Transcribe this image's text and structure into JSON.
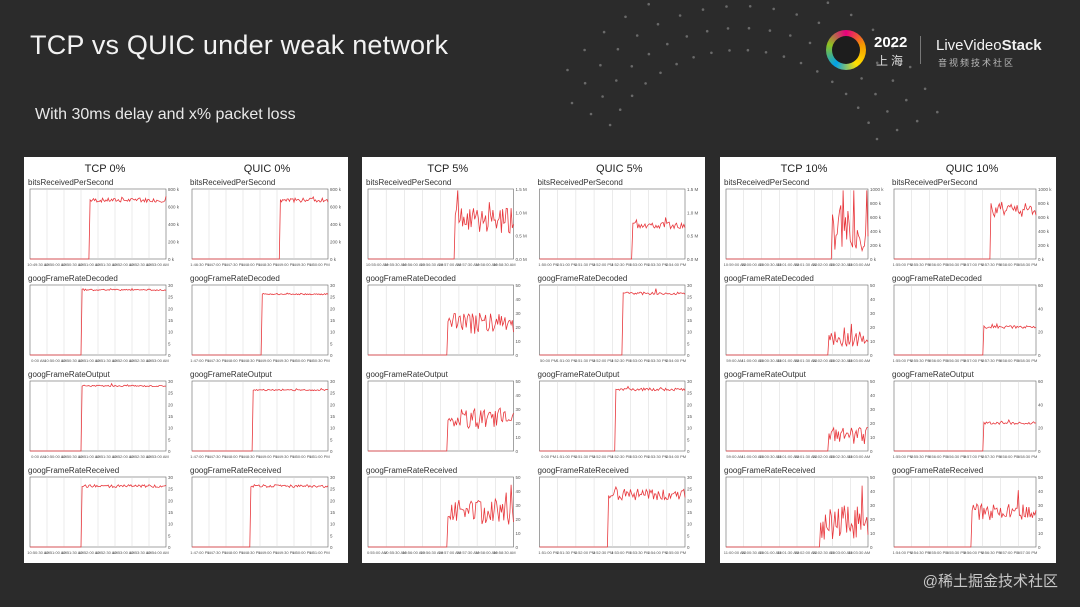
{
  "slide": {
    "title": "TCP vs QUIC under weak network",
    "subtitle": "With 30ms delay and x% packet loss"
  },
  "logo": {
    "year": "2022",
    "city": "上海",
    "brand_a": "LiveVideo",
    "brand_b": "Stack",
    "brand_sub": "音视频技术社区"
  },
  "watermark": "@稀土掘金技术社区",
  "colors": {
    "line": "#e8383d",
    "grid": "#d7d7d7",
    "axis": "#666666"
  },
  "chart_data": [
    {
      "type": "line",
      "title": "TCP 0%",
      "panels": [
        {
          "label": "bitsReceivedPerSecond",
          "x": [
            "10:49:30 AM",
            "10:50:00 AM",
            "10:50:30 AM",
            "10:51:00 AM",
            "10:51:30 AM",
            "10:52:00 AM",
            "10:52:30 AM",
            "10:53:00 AM"
          ],
          "yticks": [
            "800 k",
            "600 k",
            "400 k",
            "200 k",
            "0 k"
          ],
          "ylim": [
            0,
            800
          ],
          "step": 0.44,
          "level": 0.84,
          "noise": 0.03
        },
        {
          "label": "googFrameRateDecoded",
          "x": [
            "0:00 AM",
            "10:50:00 AM",
            "10:50:30 AM",
            "10:51:00 AM",
            "10:51:30 AM",
            "10:52:00 AM",
            "10:52:30 AM",
            "10:53:00 AM"
          ],
          "yticks": [
            "30",
            "25",
            "20",
            "15",
            "10",
            "5",
            "0"
          ],
          "ylim": [
            0,
            30
          ],
          "step": 0.38,
          "level": 0.93,
          "noise": 0.01
        },
        {
          "label": "googFrameRateOutput",
          "x": [
            "0:00 AM",
            "10:50:00 AM",
            "10:50:30 AM",
            "10:51:00 AM",
            "10:51:30 AM",
            "10:52:00 AM",
            "10:52:30 AM",
            "10:53:00 AM"
          ],
          "yticks": [
            "30",
            "25",
            "20",
            "15",
            "10",
            "5",
            "0"
          ],
          "ylim": [
            0,
            30
          ],
          "step": 0.38,
          "level": 0.93,
          "noise": 0.01
        },
        {
          "label": "googFrameRateReceived",
          "x": [
            "10:50:30 AM",
            "10:51:00 AM",
            "10:51:30 AM",
            "10:52:00 AM",
            "10:52:30 AM",
            "10:53:00 AM",
            "10:53:30 AM",
            "10:54:00 AM"
          ],
          "yticks": [
            "30",
            "25",
            "20",
            "15",
            "10",
            "5",
            "0"
          ],
          "ylim": [
            0,
            30
          ],
          "step": 0.38,
          "level": 0.87,
          "noise": 0.02
        }
      ]
    },
    {
      "type": "line",
      "title": "QUIC 0%",
      "panels": [
        {
          "label": "bitsReceivedPerSecond",
          "x": [
            "1:46:30 PM",
            "1:47:00 PM",
            "1:47:30 PM",
            "1:48:00 PM",
            "1:48:30 PM",
            "1:49:00 PM",
            "1:49:30 PM",
            "1:50:00 PM"
          ],
          "yticks": [
            "800 k",
            "600 k",
            "400 k",
            "200 k",
            "0 k"
          ],
          "ylim": [
            0,
            800
          ],
          "step": 0.65,
          "level": 0.84,
          "noise": 0.03
        },
        {
          "label": "googFrameRateDecoded",
          "x": [
            "1:47:00 PM",
            "1:47:30 PM",
            "1:48:00 PM",
            "1:48:30 PM",
            "1:49:00 PM",
            "1:49:30 PM",
            "1:50:00 PM",
            "1:50:30 PM"
          ],
          "yticks": [
            "30",
            "25",
            "20",
            "15",
            "10",
            "5",
            "0"
          ],
          "ylim": [
            0,
            30
          ],
          "step": 0.51,
          "level": 0.87,
          "noise": 0.01
        },
        {
          "label": "googFrameRateOutput",
          "x": [
            "1:47:00 PM",
            "1:47:30 PM",
            "1:48:00 PM",
            "1:48:30 PM",
            "1:49:00 PM",
            "1:49:30 PM",
            "1:50:00 PM",
            "1:51:00 PM"
          ],
          "yticks": [
            "30",
            "25",
            "20",
            "15",
            "10",
            "5",
            "0"
          ],
          "ylim": [
            0,
            30
          ],
          "step": 0.45,
          "level": 0.87,
          "noise": 0.01
        },
        {
          "label": "googFrameRateReceived",
          "x": [
            "1:47:00 PM",
            "1:47:30 PM",
            "1:48:00 PM",
            "1:48:30 PM",
            "1:49:00 PM",
            "1:49:30 PM",
            "1:50:00 PM",
            "1:51:00 PM"
          ],
          "yticks": [
            "30",
            "25",
            "20",
            "15",
            "10",
            "5",
            "0"
          ],
          "ylim": [
            0,
            30
          ],
          "step": 0.43,
          "level": 0.87,
          "noise": 0.02
        }
      ]
    },
    {
      "type": "line",
      "title": "TCP 5%",
      "panels": [
        {
          "label": "bitsReceivedPerSecond",
          "x": [
            "10:55:00 AM",
            "10:55:30 AM",
            "10:56:00 AM",
            "10:56:30 AM",
            "10:57:00 AM",
            "10:57:30 AM",
            "10:58:00 AM",
            "10:58:30 AM"
          ],
          "yticks": [
            "1.5 M",
            "1.0 M",
            "0.5 M",
            "0.0 M"
          ],
          "ylim": [
            0,
            1.5
          ],
          "step": 0.6,
          "level": 0.55,
          "noise": 0.18
        },
        {
          "label": "googFrameRateDecoded",
          "x": [
            "",
            "",
            "",
            "",
            "",
            "",
            "",
            ""
          ],
          "yticks": [
            "50",
            "40",
            "30",
            "20",
            "10",
            "0"
          ],
          "ylim": [
            0,
            50
          ],
          "step": 0.55,
          "level": 0.45,
          "noise": 0.15
        },
        {
          "label": "googFrameRateOutput",
          "x": [
            "",
            "",
            "",
            "",
            "",
            "",
            "",
            ""
          ],
          "yticks": [
            "50",
            "40",
            "30",
            "20",
            "10",
            "0"
          ],
          "ylim": [
            0,
            50
          ],
          "step": 0.55,
          "level": 0.45,
          "noise": 0.15
        },
        {
          "label": "googFrameRateReceived",
          "x": [
            "0:55:00 AM",
            "10:55:30 AM",
            "10:56:00 AM",
            "10:56:30 AM",
            "10:57:00 AM",
            "10:57:30 AM",
            "10:58:00 AM",
            "10:58:30 AM"
          ],
          "yticks": [
            "50",
            "40",
            "30",
            "20",
            "10",
            "0"
          ],
          "ylim": [
            0,
            50
          ],
          "step": 0.55,
          "level": 0.5,
          "noise": 0.2
        }
      ]
    },
    {
      "type": "line",
      "title": "QUIC 5%",
      "panels": [
        {
          "label": "bitsReceivedPerSecond",
          "x": [
            "1:50:00 PM",
            "1:51:00 PM",
            "1:51:30 PM",
            "1:52:00 PM",
            "1:52:30 PM",
            "1:53:00 PM",
            "1:53:30 PM",
            "1:54:00 PM"
          ],
          "yticks": [
            "1.5 M",
            "1.0 M",
            "0.5 M",
            "0.0 M"
          ],
          "ylim": [
            0,
            1.5
          ],
          "step": 0.64,
          "level": 0.48,
          "noise": 0.05
        },
        {
          "label": "googFrameRateDecoded",
          "x": [
            "50:00 PM",
            "1:51:00 PM",
            "1:51:30 PM",
            "1:52:00 PM",
            "1:52:30 PM",
            "1:53:00 PM",
            "1:53:30 PM",
            "1:54:00 PM"
          ],
          "yticks": [
            "30",
            "25",
            "20",
            "15",
            "10",
            "5",
            "0"
          ],
          "ylim": [
            0,
            30
          ],
          "step": 0.57,
          "level": 0.88,
          "noise": 0.02
        },
        {
          "label": "googFrameRateOutput",
          "x": [
            "0:00 PM",
            "1:51:00 PM",
            "1:51:30 PM",
            "1:52:00 PM",
            "1:52:30 PM",
            "1:53:00 PM",
            "1:53:30 PM",
            "1:54:00 PM"
          ],
          "yticks": [
            "30",
            "25",
            "20",
            "15",
            "10",
            "5",
            "0"
          ],
          "ylim": [
            0,
            30
          ],
          "step": 0.52,
          "level": 0.88,
          "noise": 0.02
        },
        {
          "label": "googFrameRateReceived",
          "x": [
            "1:51:00 PM",
            "1:51:30 PM",
            "1:52:00 PM",
            "1:52:30 PM",
            "1:53:00 PM",
            "1:53:30 PM",
            "1:54:00 PM",
            "1:55:00 PM"
          ],
          "yticks": [
            "30",
            "25",
            "20",
            "15",
            "10",
            "5",
            "0"
          ],
          "ylim": [
            0,
            30
          ],
          "step": 0.47,
          "level": 0.75,
          "noise": 0.08
        }
      ]
    },
    {
      "type": "line",
      "title": "TCP 10%",
      "panels": [
        {
          "label": "bitsReceivedPerSecond",
          "x": [
            "10:59:00 AM",
            "11:00:00 AM",
            "11:00:30 AM",
            "11:01:00 AM",
            "11:01:30 AM",
            "11:02:00 AM",
            "11:02:30 AM",
            "11:03:00 AM"
          ],
          "yticks": [
            "1000 k",
            "800 k",
            "600 k",
            "400 k",
            "200 k",
            "0 k"
          ],
          "ylim": [
            0,
            1000
          ],
          "step": 0.75,
          "level": 0.4,
          "noise": 0.3
        },
        {
          "label": "googFrameRateDecoded",
          "x": [
            "59:00 AM",
            "11:00:00 AM",
            "11:00:30 AM",
            "11:01:00 AM",
            "11:01:30 AM",
            "11:02:00 AM",
            "11:02:30 AM",
            "11:03:00 AM"
          ],
          "yticks": [
            "50",
            "40",
            "30",
            "20",
            "10",
            "0"
          ],
          "ylim": [
            0,
            50
          ],
          "step": 0.72,
          "level": 0.22,
          "noise": 0.12
        },
        {
          "label": "googFrameRateOutput",
          "x": [
            "59:00 AM",
            "11:00:00 AM",
            "11:00:30 AM",
            "11:01:00 AM",
            "11:01:30 AM",
            "11:02:00 AM",
            "11:02:30 AM",
            "11:03:00 AM"
          ],
          "yticks": [
            "50",
            "40",
            "30",
            "20",
            "10",
            "0"
          ],
          "ylim": [
            0,
            50
          ],
          "step": 0.72,
          "level": 0.22,
          "noise": 0.12
        },
        {
          "label": "googFrameRateReceived",
          "x": [
            "11:00:00 AM",
            "11:00:30 AM",
            "11:01:00 AM",
            "11:01:30 AM",
            "11:02:00 AM",
            "11:02:30 AM",
            "11:03:00 AM",
            "11:03:30 AM"
          ],
          "yticks": [
            "50",
            "40",
            "30",
            "20",
            "10",
            "0"
          ],
          "ylim": [
            0,
            50
          ],
          "step": 0.66,
          "level": 0.35,
          "noise": 0.25
        }
      ]
    },
    {
      "type": "line",
      "title": "QUIC 10%",
      "panels": [
        {
          "label": "bitsReceivedPerSecond",
          "x": [
            "1:55:00 PM",
            "1:55:30 PM",
            "1:56:00 PM",
            "1:56:30 PM",
            "1:57:00 PM",
            "1:57:30 PM",
            "1:58:00 PM",
            "1:58:30 PM"
          ],
          "yticks": [
            "1000 k",
            "800 k",
            "600 k",
            "400 k",
            "200 k",
            "0 k"
          ],
          "ylim": [
            0,
            1000
          ],
          "step": 0.68,
          "level": 0.7,
          "noise": 0.1
        },
        {
          "label": "googFrameRateDecoded",
          "x": [
            "1:55:00 PM",
            "1:55:30 PM",
            "1:56:00 PM",
            "1:56:30 PM",
            "1:57:00 PM",
            "1:57:30 PM",
            "1:58:00 PM",
            "1:58:30 PM"
          ],
          "yticks": [
            "60",
            "40",
            "20",
            "0"
          ],
          "ylim": [
            0,
            60
          ],
          "step": 0.63,
          "level": 0.4,
          "noise": 0.02
        },
        {
          "label": "googFrameRateOutput",
          "x": [
            "1:55:00 PM",
            "1:55:30 PM",
            "1:56:00 PM",
            "1:56:30 PM",
            "1:57:00 PM",
            "1:57:30 PM",
            "1:58:00 PM",
            "1:58:30 PM"
          ],
          "yticks": [
            "60",
            "40",
            "20",
            "0"
          ],
          "ylim": [
            0,
            60
          ],
          "step": 0.63,
          "level": 0.4,
          "noise": 0.02
        },
        {
          "label": "googFrameRateReceived",
          "x": [
            "1:54:00 PM",
            "1:54:30 PM",
            "1:55:00 PM",
            "1:55:30 PM",
            "1:56:00 PM",
            "1:56:30 PM",
            "1:57:00 PM",
            "1:57:30 PM"
          ],
          "yticks": [
            "50",
            "40",
            "30",
            "20",
            "10",
            "0"
          ],
          "ylim": [
            0,
            50
          ],
          "step": 0.55,
          "level": 0.5,
          "noise": 0.12
        }
      ]
    }
  ]
}
